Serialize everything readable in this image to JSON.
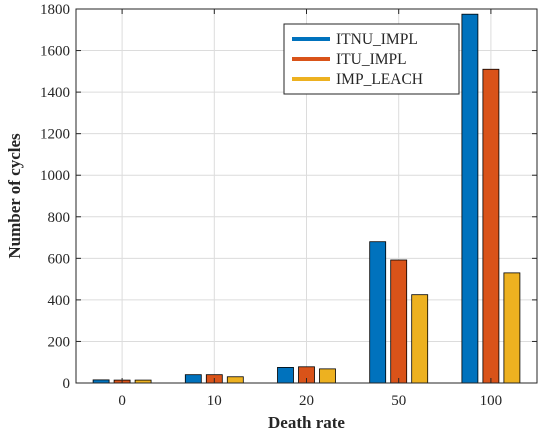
{
  "chart_data": {
    "type": "bar",
    "title": "",
    "xlabel": "Death rate",
    "ylabel": "Number of cycles",
    "categories": [
      "0",
      "10",
      "20",
      "50",
      "100"
    ],
    "series": [
      {
        "name": "ITNU_IMPL",
        "color": "#0072BD",
        "values": [
          15,
          40,
          75,
          680,
          1775
        ]
      },
      {
        "name": "ITU_IMPL",
        "color": "#D95319",
        "values": [
          14,
          40,
          78,
          592,
          1510
        ]
      },
      {
        "name": "IMP_LEACH",
        "color": "#EDB120",
        "values": [
          14,
          30,
          68,
          425,
          530
        ]
      }
    ],
    "ylim": [
      0,
      1800
    ],
    "yticks": [
      0,
      200,
      400,
      600,
      800,
      1000,
      1200,
      1400,
      1600,
      1800
    ],
    "grid": true,
    "legend_position": "top-right"
  }
}
